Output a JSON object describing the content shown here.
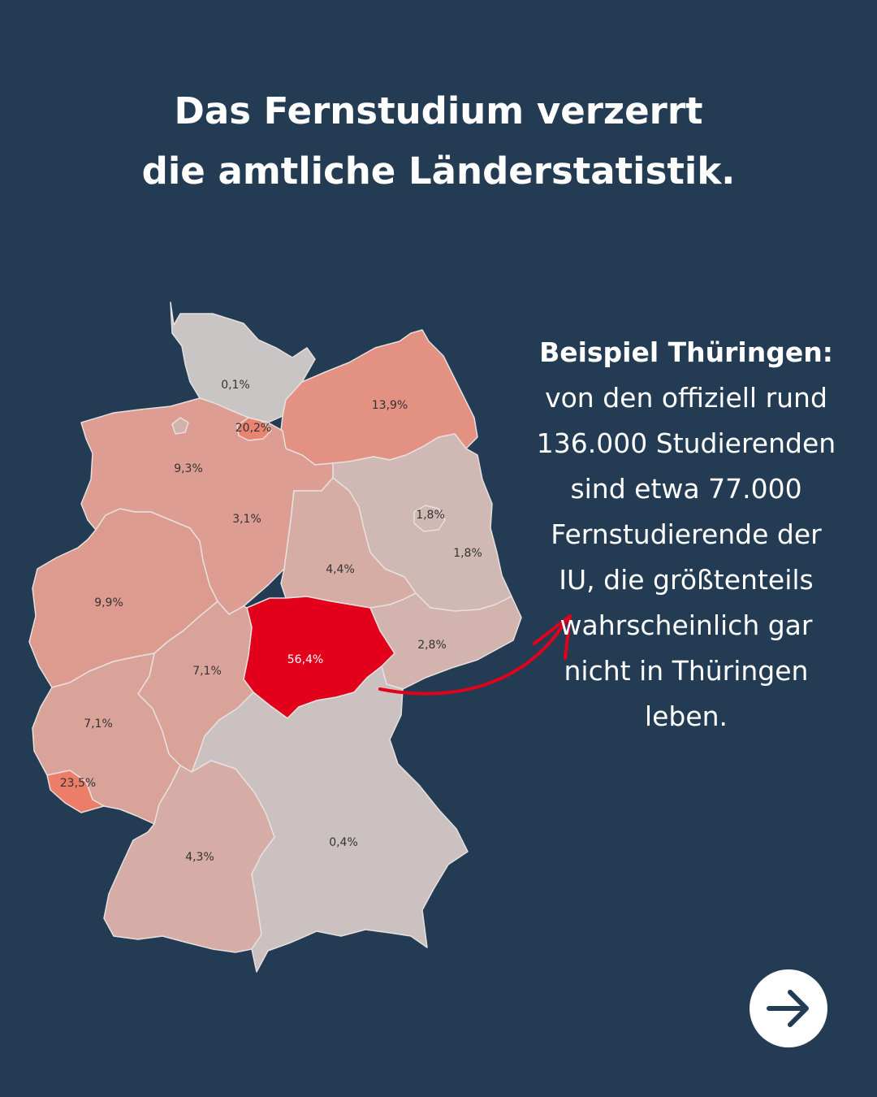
{
  "title": {
    "line1": "Das Fernstudium verzerrt",
    "line2": "die amtliche Länderstatistik."
  },
  "callout": {
    "lead": "Beispiel Thüringen:",
    "body": "von den offiziell rund 136.000 Studierenden sind etwa 77.000 Fernstudierende der IU, die größtenteils wahrscheinlich gar nicht in Thüringen leben."
  },
  "map": {
    "highlight_color": "#e2001a",
    "states": [
      {
        "name": "Schleswig-Holstein",
        "label": "0,1%",
        "value": 0.1
      },
      {
        "name": "Hamburg",
        "label": "20,2%",
        "value": 20.2
      },
      {
        "name": "Mecklenburg-Vorpommern",
        "label": "13,9%",
        "value": 13.9
      },
      {
        "name": "Niedersachsen",
        "label": "9,3%",
        "value": 9.3
      },
      {
        "name": "Bremen",
        "label": "3,1%",
        "value": 3.1
      },
      {
        "name": "Berlin",
        "label": "1,8%",
        "value": 1.8
      },
      {
        "name": "Brandenburg",
        "label": "1,8%",
        "value": 1.8
      },
      {
        "name": "Sachsen-Anhalt",
        "label": "4,4%",
        "value": 4.4
      },
      {
        "name": "Nordrhein-Westfalen",
        "label": "9,9%",
        "value": 9.9
      },
      {
        "name": "Thüringen",
        "label": "56,4%",
        "value": 56.4
      },
      {
        "name": "Sachsen",
        "label": "2,8%",
        "value": 2.8
      },
      {
        "name": "Hessen",
        "label": "7,1%",
        "value": 7.1
      },
      {
        "name": "Rheinland-Pfalz",
        "label": "7,1%",
        "value": 7.1
      },
      {
        "name": "Saarland",
        "label": "23,5%",
        "value": 23.5
      },
      {
        "name": "Baden-Württemberg",
        "label": "4,3%",
        "value": 4.3
      },
      {
        "name": "Bayern",
        "label": "0,4%",
        "value": 0.4
      }
    ]
  },
  "next_button": {
    "icon": "arrow-right-icon"
  }
}
